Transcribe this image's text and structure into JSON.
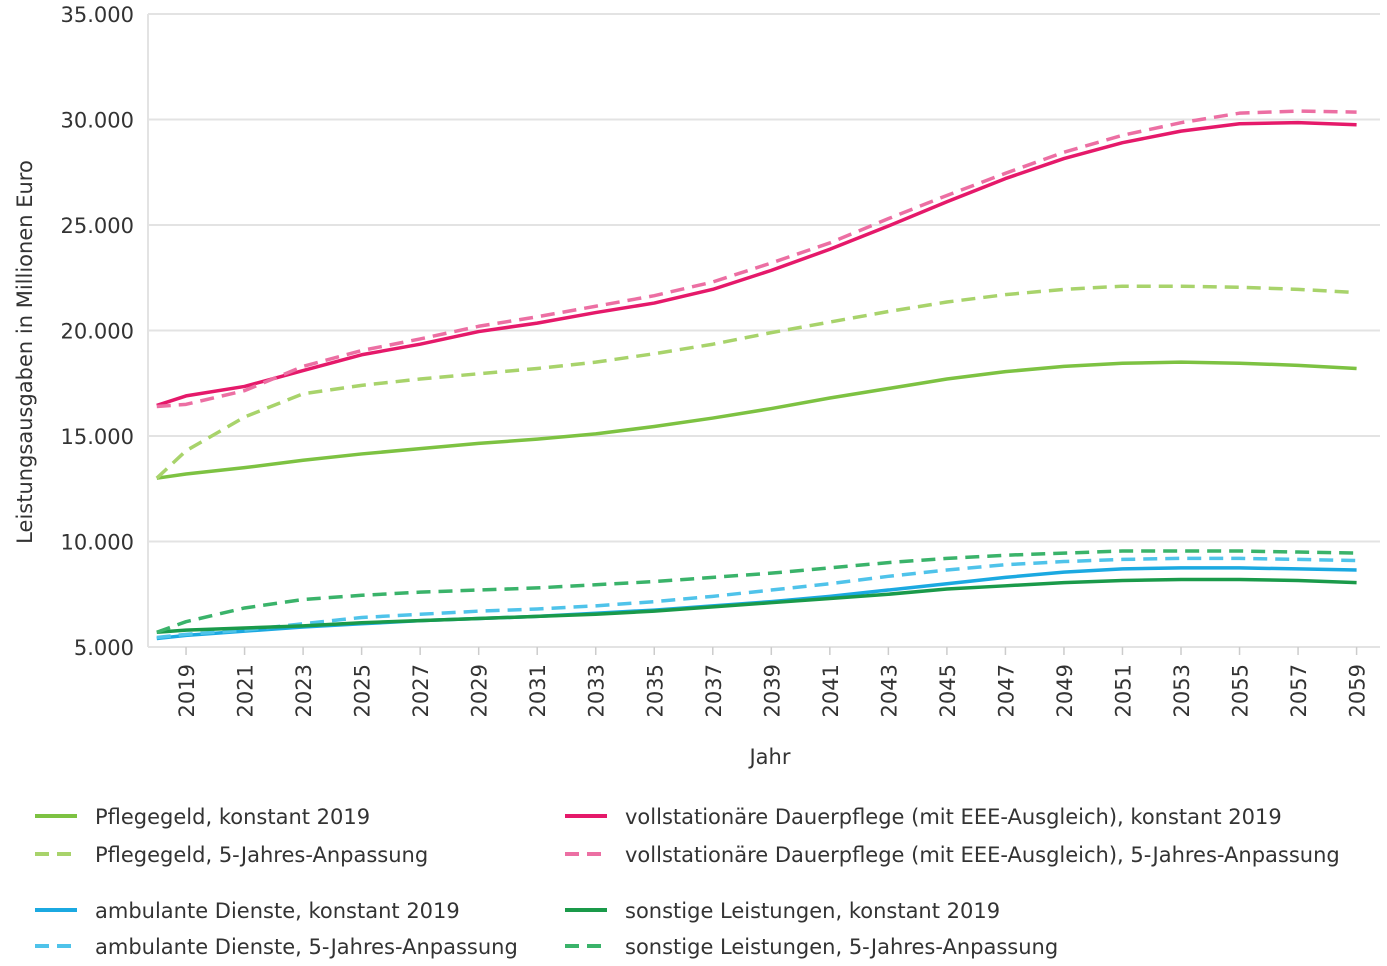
{
  "chart_data": {
    "type": "line",
    "y_label": "Leistungsausgaben in Millionen Euro",
    "x_label": "Jahr",
    "x": [
      2018,
      2019,
      2021,
      2023,
      2025,
      2027,
      2029,
      2031,
      2033,
      2035,
      2037,
      2039,
      2041,
      2043,
      2045,
      2047,
      2049,
      2051,
      2053,
      2055,
      2057,
      2059
    ],
    "xlim": [
      2017.7,
      2059.8
    ],
    "xticks": [
      2019,
      2021,
      2023,
      2025,
      2027,
      2029,
      2031,
      2033,
      2035,
      2037,
      2039,
      2041,
      2043,
      2045,
      2047,
      2049,
      2051,
      2053,
      2055,
      2057,
      2059
    ],
    "ylim": [
      5000,
      35000
    ],
    "yticks": [
      {
        "value": 5000,
        "label": "5.000"
      },
      {
        "value": 10000,
        "label": "10.000"
      },
      {
        "value": 15000,
        "label": "15.000"
      },
      {
        "value": 20000,
        "label": "20.000"
      },
      {
        "value": 25000,
        "label": "25.000"
      },
      {
        "value": 30000,
        "label": "30.000"
      },
      {
        "value": 35000,
        "label": "35.000"
      }
    ],
    "grid": true,
    "series": [
      {
        "name": "Pflegegeld, konstant 2019",
        "color": "#7dc242",
        "dashed": false,
        "values": [
          13000,
          13200,
          13500,
          13850,
          14150,
          14400,
          14650,
          14850,
          15100,
          15450,
          15850,
          16300,
          16800,
          17250,
          17700,
          18050,
          18300,
          18450,
          18500,
          18450,
          18350,
          18200
        ]
      },
      {
        "name": "Pflegegeld, 5-Jahres-Anpassung",
        "color": "#a8d36b",
        "dashed": true,
        "values": [
          13000,
          14300,
          15900,
          17000,
          17400,
          17700,
          17950,
          18200,
          18500,
          18900,
          19350,
          19900,
          20400,
          20900,
          21350,
          21700,
          21950,
          22100,
          22100,
          22050,
          21950,
          21800
        ]
      },
      {
        "name": "vollstationäre Dauerpflege (mit EEE-Ausgleich), konstant 2019",
        "color": "#e5196a",
        "dashed": false,
        "values": [
          16450,
          16900,
          17350,
          18100,
          18850,
          19350,
          19950,
          20350,
          20850,
          21300,
          21950,
          22850,
          23850,
          24950,
          26100,
          27200,
          28150,
          28900,
          29450,
          29800,
          29850,
          29750
        ]
      },
      {
        "name": "vollstationäre Dauerpflege (mit EEE-Ausgleich), 5-Jahres-Anpassung",
        "color": "#ec6fa3",
        "dashed": true,
        "values": [
          16400,
          16500,
          17150,
          18300,
          19050,
          19600,
          20200,
          20650,
          21150,
          21650,
          22300,
          23200,
          24150,
          25300,
          26400,
          27450,
          28450,
          29250,
          29850,
          30300,
          30400,
          30350
        ]
      },
      {
        "name": "ambulante Dienste, konstant 2019",
        "color": "#1ba9e1",
        "dashed": false,
        "values": [
          5400,
          5550,
          5750,
          5950,
          6100,
          6250,
          6350,
          6450,
          6600,
          6750,
          6950,
          7150,
          7400,
          7700,
          8000,
          8300,
          8550,
          8700,
          8750,
          8750,
          8700,
          8650
        ]
      },
      {
        "name": "ambulante Dienste, 5-Jahres-Anpassung",
        "color": "#4fc3ea",
        "dashed": true,
        "values": [
          5450,
          5600,
          5800,
          6100,
          6400,
          6550,
          6700,
          6800,
          6950,
          7150,
          7400,
          7700,
          8000,
          8350,
          8650,
          8900,
          9050,
          9150,
          9200,
          9200,
          9150,
          9100
        ]
      },
      {
        "name": "sonstige Leistungen, konstant 2019",
        "color": "#1a9a4a",
        "dashed": false,
        "values": [
          5700,
          5800,
          5900,
          6000,
          6150,
          6250,
          6350,
          6450,
          6550,
          6700,
          6900,
          7100,
          7300,
          7500,
          7750,
          7900,
          8050,
          8150,
          8200,
          8200,
          8150,
          8050
        ]
      },
      {
        "name": "sonstige Leistungen, 5-Jahres-Anpassung",
        "color": "#3ab36a",
        "dashed": true,
        "values": [
          5700,
          6200,
          6850,
          7250,
          7450,
          7600,
          7700,
          7800,
          7950,
          8100,
          8300,
          8500,
          8750,
          9000,
          9200,
          9350,
          9450,
          9550,
          9550,
          9550,
          9500,
          9450
        ]
      }
    ]
  }
}
